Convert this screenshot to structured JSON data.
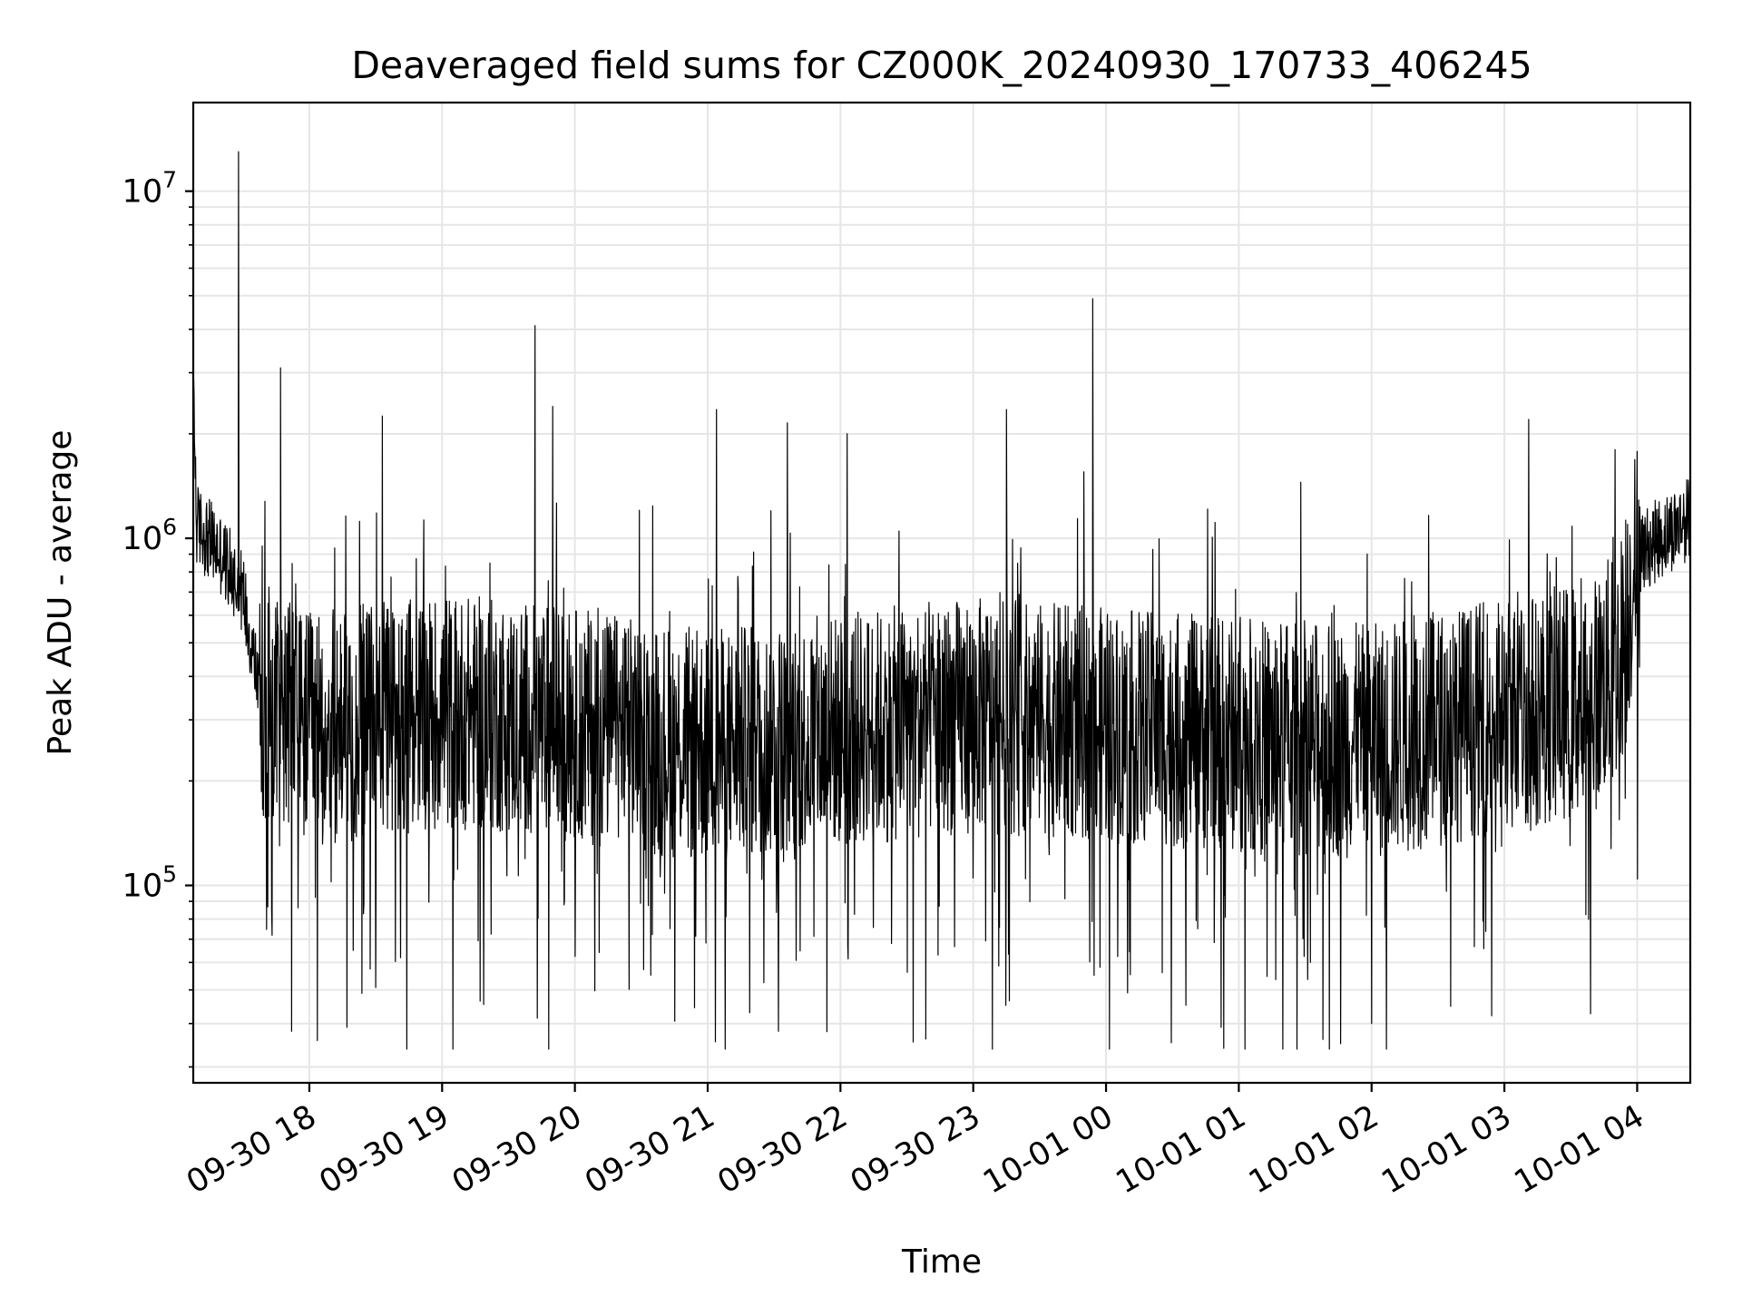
{
  "chart_data": {
    "type": "line",
    "title": "Deaveraged field sums for CZ000K_20240930_170733_406245",
    "xlabel": "Time",
    "ylabel": "Peak ADU - average",
    "y_scale": "log",
    "ylim": [
      27000,
      18000000
    ],
    "xlim": [
      "2024-09-30 17:07:33",
      "2024-10-01 04:24:00"
    ],
    "grid": true,
    "legend": "none",
    "line_color": "#000000",
    "grid_color": "#e6e6e6",
    "x_ticks": [
      {
        "t": "2024-09-30 18:00",
        "label": "09-30 18"
      },
      {
        "t": "2024-09-30 19:00",
        "label": "09-30 19"
      },
      {
        "t": "2024-09-30 20:00",
        "label": "09-30 20"
      },
      {
        "t": "2024-09-30 21:00",
        "label": "09-30 21"
      },
      {
        "t": "2024-09-30 22:00",
        "label": "09-30 22"
      },
      {
        "t": "2024-09-30 23:00",
        "label": "09-30 23"
      },
      {
        "t": "2024-10-01 00:00",
        "label": "10-01 00"
      },
      {
        "t": "2024-10-01 01:00",
        "label": "10-01 01"
      },
      {
        "t": "2024-10-01 02:00",
        "label": "10-01 02"
      },
      {
        "t": "2024-10-01 03:00",
        "label": "10-01 03"
      },
      {
        "t": "2024-10-01 04:00",
        "label": "10-01 04"
      }
    ],
    "y_ticks": [
      {
        "value": 100000,
        "base": "10",
        "exp": "5"
      },
      {
        "value": 1000000,
        "base": "10",
        "exp": "6"
      },
      {
        "value": 10000000,
        "base": "10",
        "exp": "7"
      }
    ],
    "series": [
      {
        "baseline": [
          [
            "2024-09-30 17:07:33",
            3200000
          ],
          [
            "2024-09-30 17:09:00",
            1100000
          ],
          [
            "2024-09-30 17:20:00",
            900000
          ],
          [
            "2024-09-30 17:30:00",
            700000
          ],
          [
            "2024-09-30 17:38:00",
            350000
          ],
          [
            "2024-09-30 18:00:00",
            280000
          ],
          [
            "2024-09-30 19:00:00",
            320000
          ],
          [
            "2024-09-30 20:00:00",
            290000
          ],
          [
            "2024-09-30 21:00:00",
            250000
          ],
          [
            "2024-09-30 22:00:00",
            280000
          ],
          [
            "2024-09-30 23:00:00",
            310000
          ],
          [
            "2024-10-01 00:00:00",
            290000
          ],
          [
            "2024-10-01 01:00:00",
            270000
          ],
          [
            "2024-10-01 02:00:00",
            260000
          ],
          [
            "2024-10-01 03:00:00",
            310000
          ],
          [
            "2024-10-01 03:40:00",
            350000
          ],
          [
            "2024-10-01 03:52:00",
            450000
          ],
          [
            "2024-10-01 04:00:00",
            900000
          ],
          [
            "2024-10-01 04:24:00",
            1150000
          ]
        ],
        "spikes": [
          [
            "2024-09-30 17:28:00",
            13000000
          ],
          [
            "2024-09-30 17:47:00",
            3100000
          ],
          [
            "2024-09-30 18:33:00",
            2250000
          ],
          [
            "2024-09-30 19:42:00",
            4100000
          ],
          [
            "2024-09-30 19:50:00",
            2400000
          ],
          [
            "2024-09-30 21:04:00",
            2350000
          ],
          [
            "2024-09-30 21:36:00",
            2150000
          ],
          [
            "2024-09-30 22:03:00",
            2000000
          ],
          [
            "2024-09-30 23:15:00",
            2350000
          ],
          [
            "2024-09-30 23:54:00",
            4900000
          ],
          [
            "2024-10-01 01:28:00",
            1450000
          ],
          [
            "2024-10-01 03:11:00",
            2200000
          ],
          [
            "2024-10-01 03:50:00",
            1800000
          ]
        ],
        "dips": [
          [
            "2024-09-30 17:52:00",
            38000
          ],
          [
            "2024-09-30 18:17:00",
            39000
          ],
          [
            "2024-09-30 21:32:00",
            38000
          ],
          [
            "2024-10-01 01:38:00",
            36000
          ],
          [
            "2024-10-01 01:46:00",
            35000
          ],
          [
            "2024-10-01 02:00:00",
            40000
          ],
          [
            "2024-10-01 00:52:00",
            39000
          ],
          [
            "2024-09-30 21:19:00",
            43000
          ]
        ]
      }
    ]
  }
}
